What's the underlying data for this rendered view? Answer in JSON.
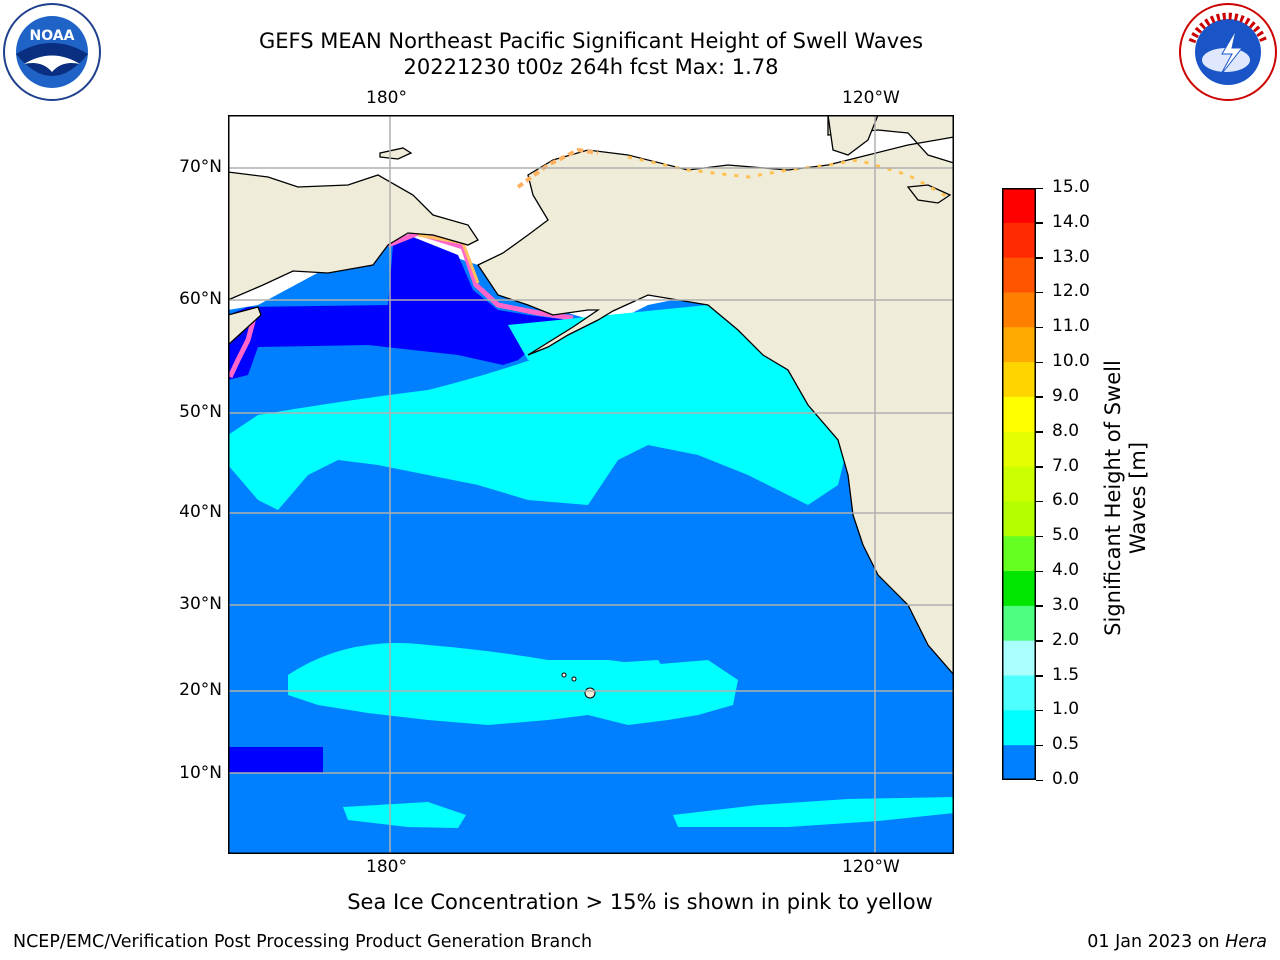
{
  "header": {
    "title_line1": "GEFS MEAN Northeast Pacific Significant Height of Swell Waves",
    "title_line2": "20221230 t00z 264h fcst   Max: 1.78"
  },
  "logos": {
    "left": {
      "icon": "noaa-logo-icon",
      "text": "NOAA"
    },
    "right": {
      "icon": "nws-logo-icon"
    }
  },
  "map": {
    "projection": "cylindrical",
    "lon_labels": [
      "180°",
      "120°W"
    ],
    "lat_labels": [
      "70°N",
      "60°N",
      "50°N",
      "40°N",
      "30°N",
      "20°N",
      "10°N"
    ],
    "colors": {
      "land": "#efedd9",
      "sea_0_5": "#0000ff",
      "sea_1_0": "#0080ff",
      "sea_1_5": "#00ffff",
      "sea_2_0": "#4dffff",
      "ice_pink": "#ff66cc",
      "ice_yellow": "#ffd700"
    }
  },
  "colorbar": {
    "label": "Significant Height of Swell Waves [m]",
    "ticks": [
      "15.0",
      "14.0",
      "13.0",
      "12.0",
      "11.0",
      "10.0",
      "9.0",
      "8.0",
      "7.0",
      "6.0",
      "5.0",
      "4.0",
      "3.0",
      "2.0",
      "1.5",
      "1.0",
      "0.5",
      "0.0"
    ],
    "colors": [
      "#ff0000",
      "#ff2a00",
      "#ff5500",
      "#ff8000",
      "#ffaa00",
      "#ffd500",
      "#ffff00",
      "#e6ff00",
      "#ccff00",
      "#b3ff00",
      "#66ff22",
      "#00e600",
      "#4dff80",
      "#aaffff",
      "#4dffff",
      "#00ffff",
      "#0080ff",
      "#0000ff"
    ]
  },
  "footnote": "Sea Ice Concentration > 15% is shown in pink to yellow",
  "footer": {
    "left": "NCEP/EMC/Verification Post Processing Product Generation Branch",
    "right_date": "01 Jan 2023 on ",
    "right_machine": "Hera"
  }
}
